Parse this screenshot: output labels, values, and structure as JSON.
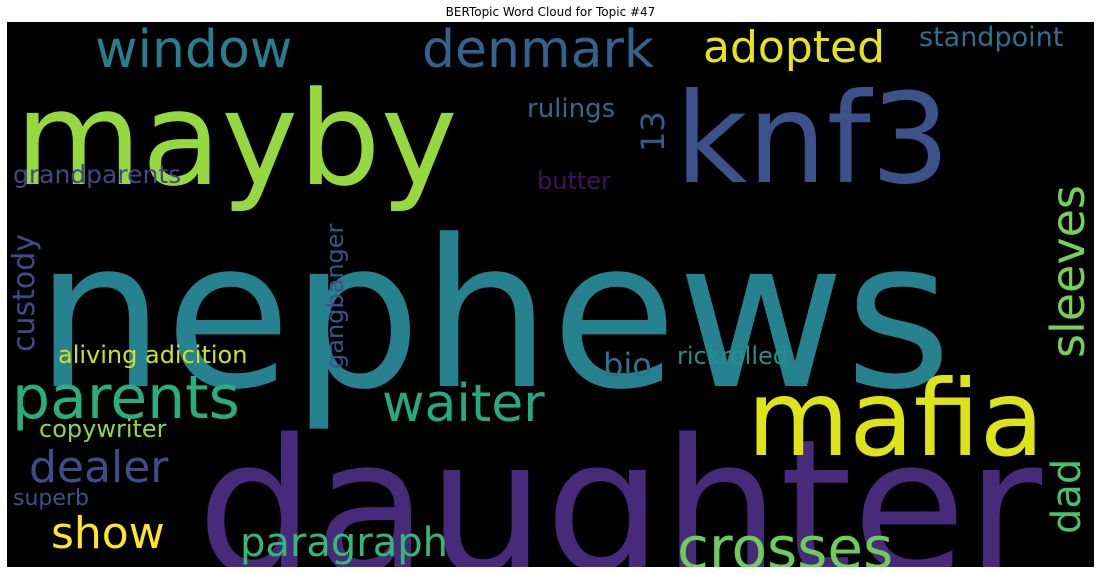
{
  "chart_data": {
    "type": "wordcloud",
    "title": "BERTopic Word Cloud for Topic #47",
    "background": "#000000",
    "words": [
      {
        "text": "nephews",
        "color": "#26828e"
      },
      {
        "text": "daughter",
        "color": "#472a7a"
      },
      {
        "text": "mayby",
        "color": "#95d840"
      },
      {
        "text": "knf3",
        "color": "#3b528b"
      },
      {
        "text": "mafia",
        "color": "#dde318"
      },
      {
        "text": "crosses",
        "color": "#6ccd5a"
      },
      {
        "text": "parents",
        "color": "#29af7f"
      },
      {
        "text": "waiter",
        "color": "#25ab82"
      },
      {
        "text": "window",
        "color": "#287d8e"
      },
      {
        "text": "denmark",
        "color": "#33638d"
      },
      {
        "text": "adopted",
        "color": "#e5e419"
      },
      {
        "text": "sleeves",
        "color": "#75d054"
      },
      {
        "text": "dealer",
        "color": "#3d4e8a"
      },
      {
        "text": "show",
        "color": "#fde725"
      },
      {
        "text": "paragraph",
        "color": "#35b779"
      },
      {
        "text": "dad",
        "color": "#4ac16d"
      },
      {
        "text": "custody",
        "color": "#3e4a89"
      },
      {
        "text": "standpoint",
        "color": "#2c728e"
      },
      {
        "text": "13",
        "color": "#38598c"
      },
      {
        "text": "rulings",
        "color": "#31688e"
      },
      {
        "text": "grandparents",
        "color": "#404688"
      },
      {
        "text": "butter",
        "color": "#440f5c"
      },
      {
        "text": "gangbanger",
        "color": "#3b528b"
      },
      {
        "text": "aliving adicition",
        "color": "#d0e11c"
      },
      {
        "text": "bio",
        "color": "#2c728e"
      },
      {
        "text": "rickrolled",
        "color": "#21918c"
      },
      {
        "text": "copywriter",
        "color": "#8fd744"
      },
      {
        "text": "superb",
        "color": "#3b528b"
      }
    ]
  }
}
